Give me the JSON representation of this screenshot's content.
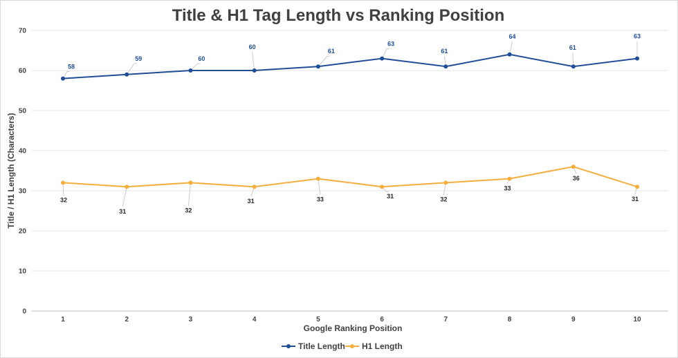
{
  "chart_data": {
    "type": "line",
    "title": "Title & H1 Tag Length vs Ranking Position",
    "xlabel": "Google Ranking Position",
    "ylabel": "Title / H1 Length (Characters)",
    "x": [
      1,
      2,
      3,
      4,
      5,
      6,
      7,
      8,
      9,
      10
    ],
    "ylim": [
      0,
      70
    ],
    "yticks": [
      0,
      10,
      20,
      30,
      40,
      50,
      60,
      70
    ],
    "grid": true,
    "legend_position": "bottom",
    "series": [
      {
        "name": "Title Length",
        "color": "#1f4e96",
        "values": [
          58,
          59,
          60,
          60,
          61,
          63,
          61,
          64,
          61,
          63
        ]
      },
      {
        "name": "H1 Length",
        "color": "#f4ae3d",
        "values": [
          32,
          31,
          32,
          31,
          33,
          31,
          32,
          33,
          36,
          31
        ]
      }
    ]
  }
}
